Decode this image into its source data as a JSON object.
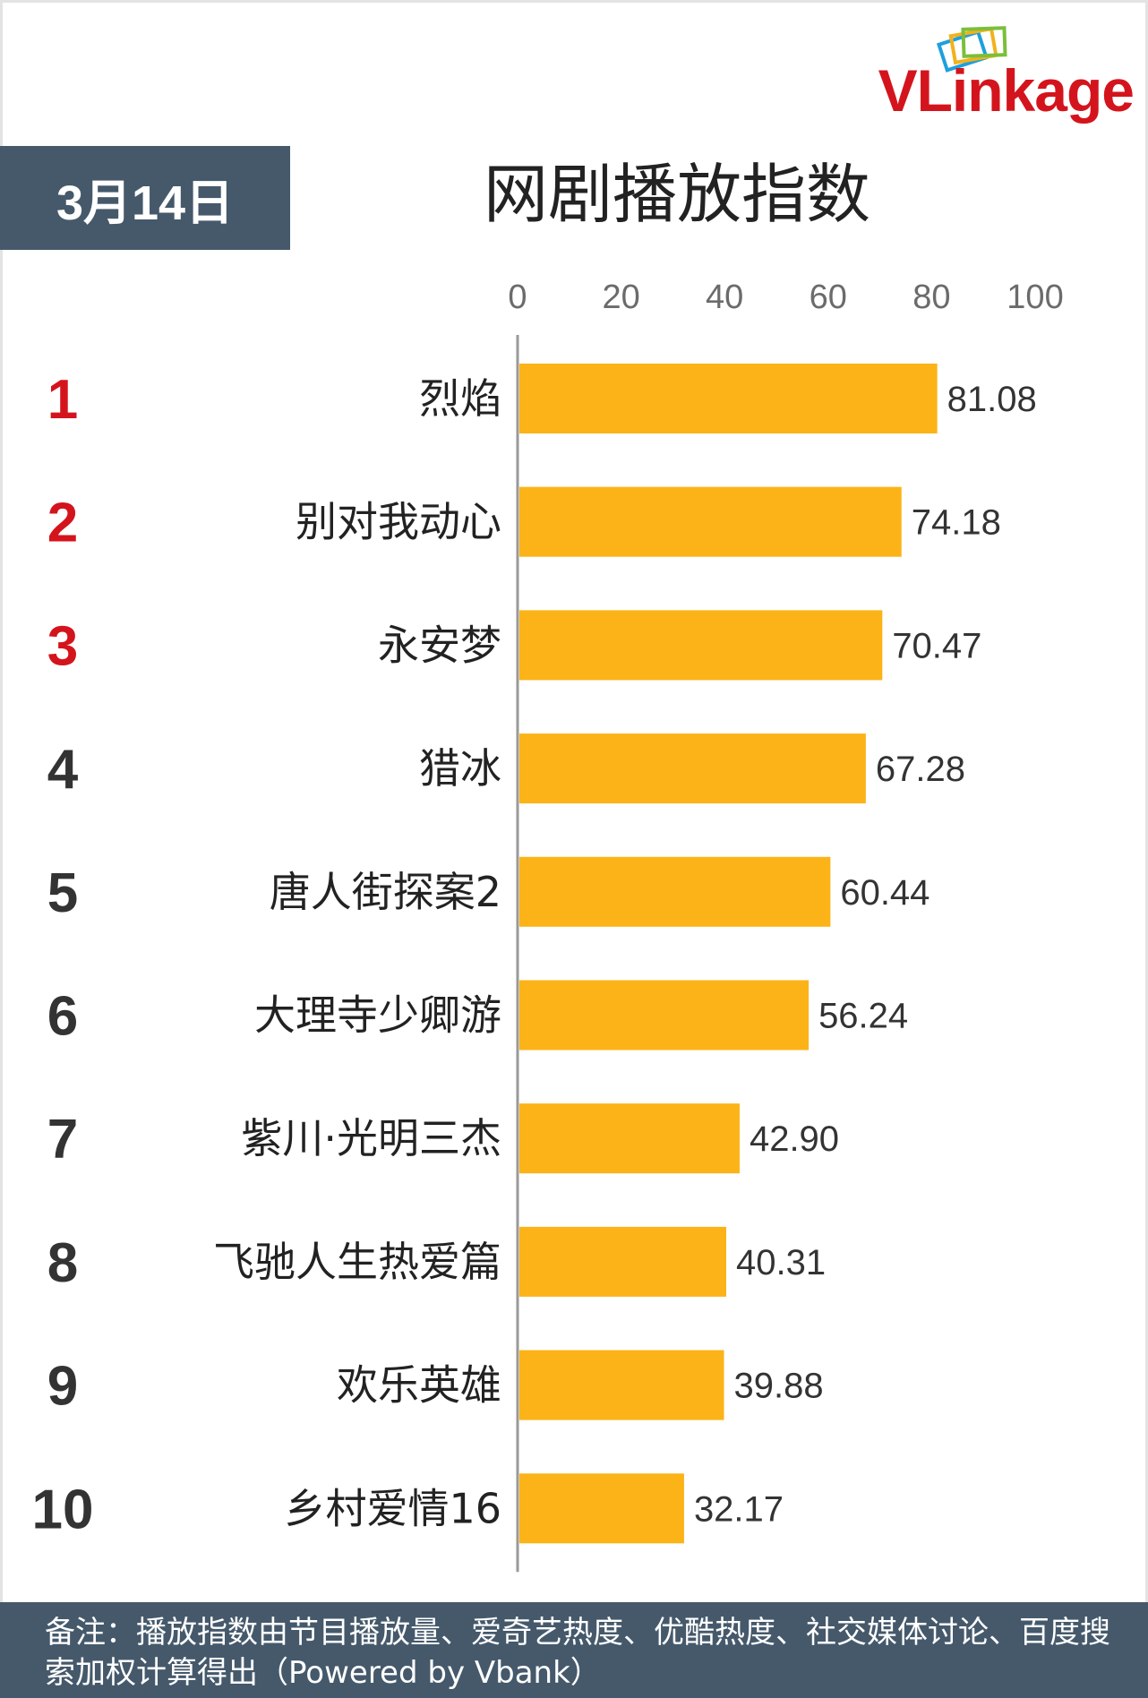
{
  "logo": {
    "text": "VLinkage"
  },
  "date_label": "3月14日",
  "footnote": "备注：播放指数由节目播放量、爱奇艺热度、优酷热度、社交媒体讨论、百度搜索加权计算得出（Powered by Vbank）",
  "colors": {
    "bar": "#FBB317",
    "rank_top": "#D4141C",
    "rank_other": "#333333",
    "header_bg": "#45596B"
  },
  "chart_data": {
    "type": "bar",
    "orientation": "horizontal",
    "title": "网剧播放指数",
    "xlim": [
      0,
      100
    ],
    "xticks": [
      0,
      20,
      40,
      60,
      80,
      100
    ],
    "xtick_labels": [
      "0",
      "20",
      "40",
      "60",
      "80",
      "100"
    ],
    "grid": false,
    "ranks": [
      "1",
      "2",
      "3",
      "4",
      "5",
      "6",
      "7",
      "8",
      "9",
      "10"
    ],
    "categories": [
      "烈焰",
      "别对我动心",
      "永安梦",
      "猎冰",
      "唐人街探案2",
      "大理寺少卿游",
      "紫川·光明三杰",
      "飞驰人生热爱篇",
      "欢乐英雄",
      "乡村爱情16"
    ],
    "values": [
      81.08,
      74.18,
      70.47,
      67.28,
      60.44,
      56.24,
      42.9,
      40.31,
      39.88,
      32.17
    ],
    "value_labels": [
      "81.08",
      "74.18",
      "70.47",
      "67.28",
      "60.44",
      "56.24",
      "42.90",
      "40.31",
      "39.88",
      "32.17"
    ]
  }
}
